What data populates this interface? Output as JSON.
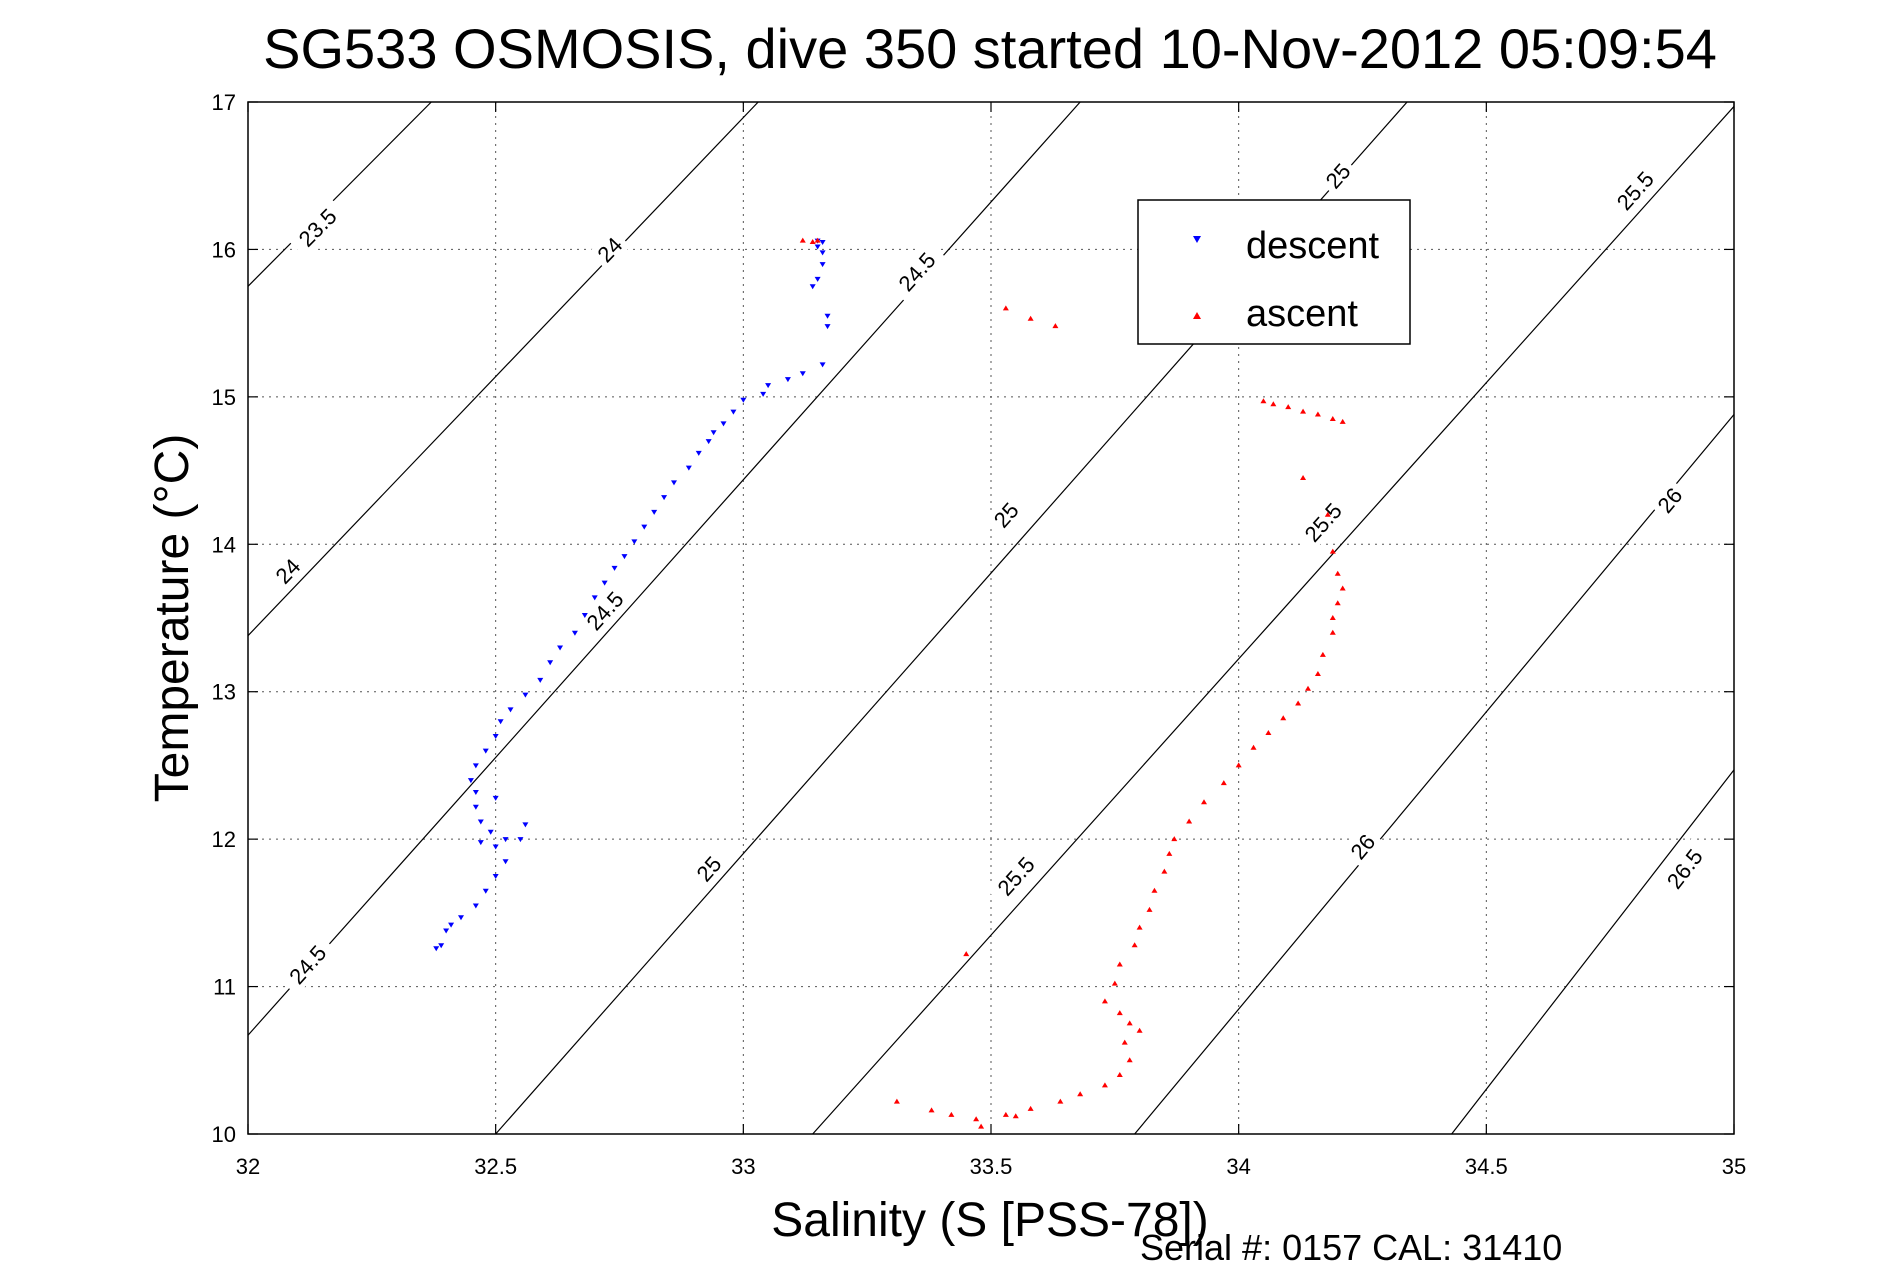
{
  "chart_data": {
    "type": "scatter",
    "title": "SG533 OSMOSIS, dive 350 started 10-Nov-2012 05:09:54",
    "xlabel": "Salinity (S [PSS-78])",
    "ylabel": "Temperature (°C)",
    "xlim": [
      32,
      35
    ],
    "ylim": [
      10,
      17
    ],
    "xticks": [
      "32",
      "32.5",
      "33",
      "33.5",
      "34",
      "34.5",
      "35"
    ],
    "yticks": [
      "10",
      "11",
      "12",
      "13",
      "14",
      "15",
      "16",
      "17"
    ],
    "grid": true,
    "legend_position": "top-right",
    "legend": [
      "descent",
      "ascent"
    ],
    "colors": {
      "descent": "#0000ff",
      "ascent": "#ff0000",
      "contour": "#000000"
    },
    "footer": "Serial #: 0157  CAL: 31410",
    "density_contours": [
      {
        "line": [
          [
            32.0,
            15.75
          ],
          [
            32.37,
            17.0
          ]
        ],
        "labels": [
          {
            "text": "23.5",
            "at": [
              32.14,
              16.15
            ]
          }
        ]
      },
      {
        "line": [
          [
            32.0,
            13.38
          ],
          [
            33.03,
            17.0
          ]
        ],
        "labels": [
          {
            "text": "24",
            "at": [
              32.08,
              13.82
            ]
          },
          {
            "text": "24",
            "at": [
              32.73,
              16.0
            ]
          }
        ]
      },
      {
        "line": [
          [
            32.0,
            10.67
          ],
          [
            33.68,
            17.0
          ]
        ],
        "labels": [
          {
            "text": "24.5",
            "at": [
              32.12,
              11.15
            ]
          },
          {
            "text": "24.5",
            "at": [
              32.72,
              13.55
            ]
          },
          {
            "text": "24.5",
            "at": [
              33.35,
              15.85
            ]
          }
        ]
      },
      {
        "line": [
          [
            32.5,
            10.0
          ],
          [
            34.34,
            17.0
          ]
        ],
        "labels": [
          {
            "text": "25",
            "at": [
              32.93,
              11.8
            ]
          },
          {
            "text": "25",
            "at": [
              33.53,
              14.2
            ]
          },
          {
            "text": "25",
            "at": [
              34.2,
              16.5
            ]
          }
        ]
      },
      {
        "line": [
          [
            33.14,
            10.0
          ],
          [
            35.0,
            16.97
          ]
        ],
        "labels": [
          {
            "text": "25.5",
            "at": [
              33.55,
              11.75
            ]
          },
          {
            "text": "25.5",
            "at": [
              34.17,
              14.15
            ]
          },
          {
            "text": "25.5",
            "at": [
              34.8,
              16.4
            ]
          }
        ]
      },
      {
        "line": [
          [
            33.79,
            10.0
          ],
          [
            35.0,
            14.88
          ]
        ],
        "labels": [
          {
            "text": "26",
            "at": [
              34.25,
              11.95
            ]
          },
          {
            "text": "26",
            "at": [
              34.87,
              14.3
            ]
          }
        ]
      },
      {
        "line": [
          [
            34.43,
            10.0
          ],
          [
            35.0,
            12.47
          ]
        ],
        "labels": [
          {
            "text": "26.5",
            "at": [
              34.9,
              11.8
            ]
          }
        ]
      }
    ],
    "series": [
      {
        "name": "descent",
        "marker": "triangle-down",
        "points": [
          [
            33.15,
            16.06
          ],
          [
            33.16,
            16.05
          ],
          [
            33.15,
            16.02
          ],
          [
            33.16,
            15.98
          ],
          [
            33.16,
            15.9
          ],
          [
            33.15,
            15.8
          ],
          [
            33.14,
            15.75
          ],
          [
            33.17,
            15.55
          ],
          [
            33.17,
            15.48
          ],
          [
            33.16,
            15.22
          ],
          [
            33.12,
            15.16
          ],
          [
            33.09,
            15.12
          ],
          [
            33.05,
            15.08
          ],
          [
            33.04,
            15.02
          ],
          [
            33.0,
            14.98
          ],
          [
            32.98,
            14.9
          ],
          [
            32.96,
            14.82
          ],
          [
            32.94,
            14.76
          ],
          [
            32.93,
            14.7
          ],
          [
            32.91,
            14.62
          ],
          [
            32.89,
            14.52
          ],
          [
            32.86,
            14.42
          ],
          [
            32.84,
            14.32
          ],
          [
            32.82,
            14.22
          ],
          [
            32.8,
            14.12
          ],
          [
            32.78,
            14.02
          ],
          [
            32.76,
            13.92
          ],
          [
            32.74,
            13.84
          ],
          [
            32.72,
            13.74
          ],
          [
            32.7,
            13.64
          ],
          [
            32.68,
            13.52
          ],
          [
            32.66,
            13.4
          ],
          [
            32.63,
            13.3
          ],
          [
            32.61,
            13.2
          ],
          [
            32.59,
            13.08
          ],
          [
            32.56,
            12.98
          ],
          [
            32.53,
            12.88
          ],
          [
            32.51,
            12.8
          ],
          [
            32.5,
            12.7
          ],
          [
            32.48,
            12.6
          ],
          [
            32.46,
            12.5
          ],
          [
            32.45,
            12.4
          ],
          [
            32.46,
            12.32
          ],
          [
            32.5,
            12.28
          ],
          [
            32.46,
            12.22
          ],
          [
            32.47,
            12.12
          ],
          [
            32.49,
            12.05
          ],
          [
            32.52,
            12.0
          ],
          [
            32.56,
            12.1
          ],
          [
            32.55,
            12.0
          ],
          [
            32.5,
            11.95
          ],
          [
            32.47,
            11.98
          ],
          [
            32.52,
            11.85
          ],
          [
            32.5,
            11.75
          ],
          [
            32.48,
            11.65
          ],
          [
            32.46,
            11.55
          ],
          [
            32.43,
            11.47
          ],
          [
            32.41,
            11.42
          ],
          [
            32.4,
            11.38
          ],
          [
            32.39,
            11.28
          ],
          [
            32.38,
            11.26
          ]
        ]
      },
      {
        "name": "ascent",
        "marker": "triangle-up",
        "points": [
          [
            33.12,
            16.06
          ],
          [
            33.15,
            16.06
          ],
          [
            33.14,
            16.05
          ],
          [
            33.53,
            15.6
          ],
          [
            33.58,
            15.53
          ],
          [
            33.63,
            15.48
          ],
          [
            34.05,
            14.97
          ],
          [
            34.07,
            14.95
          ],
          [
            34.1,
            14.93
          ],
          [
            34.13,
            14.9
          ],
          [
            34.16,
            14.88
          ],
          [
            34.19,
            14.85
          ],
          [
            34.21,
            14.83
          ],
          [
            34.13,
            14.45
          ],
          [
            34.18,
            14.2
          ],
          [
            34.19,
            13.95
          ],
          [
            34.2,
            13.8
          ],
          [
            34.21,
            13.7
          ],
          [
            34.2,
            13.6
          ],
          [
            34.19,
            13.5
          ],
          [
            34.19,
            13.4
          ],
          [
            34.17,
            13.25
          ],
          [
            34.16,
            13.12
          ],
          [
            34.14,
            13.02
          ],
          [
            34.12,
            12.92
          ],
          [
            34.09,
            12.82
          ],
          [
            34.06,
            12.72
          ],
          [
            34.03,
            12.62
          ],
          [
            34.0,
            12.5
          ],
          [
            33.97,
            12.38
          ],
          [
            33.93,
            12.25
          ],
          [
            33.9,
            12.12
          ],
          [
            33.87,
            12.0
          ],
          [
            33.86,
            11.9
          ],
          [
            33.85,
            11.78
          ],
          [
            33.83,
            11.65
          ],
          [
            33.82,
            11.52
          ],
          [
            33.8,
            11.4
          ],
          [
            33.79,
            11.28
          ],
          [
            33.76,
            11.15
          ],
          [
            33.75,
            11.02
          ],
          [
            33.73,
            10.9
          ],
          [
            33.76,
            10.82
          ],
          [
            33.78,
            10.75
          ],
          [
            33.8,
            10.7
          ],
          [
            33.77,
            10.62
          ],
          [
            33.78,
            10.5
          ],
          [
            33.76,
            10.4
          ],
          [
            33.73,
            10.33
          ],
          [
            33.68,
            10.27
          ],
          [
            33.64,
            10.22
          ],
          [
            33.58,
            10.17
          ],
          [
            33.53,
            10.13
          ],
          [
            33.47,
            10.1
          ],
          [
            33.42,
            10.13
          ],
          [
            33.38,
            10.16
          ],
          [
            33.31,
            10.22
          ],
          [
            33.48,
            10.05
          ],
          [
            33.55,
            10.12
          ],
          [
            33.45,
            11.22
          ]
        ]
      }
    ]
  }
}
